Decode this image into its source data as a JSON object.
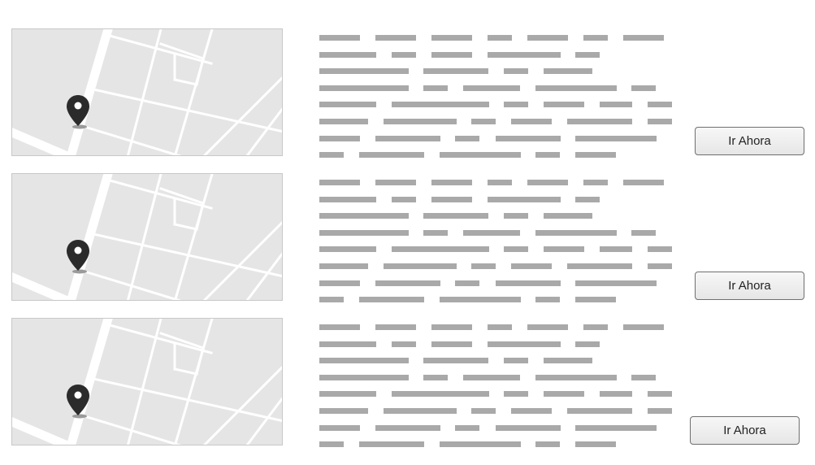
{
  "results": [
    {
      "button_label": "Ir Ahora",
      "map_icon": "map-pin-icon"
    },
    {
      "button_label": "Ir Ahora",
      "map_icon": "map-pin-icon"
    },
    {
      "button_label": "Ir Ahora",
      "map_icon": "map-pin-icon"
    }
  ],
  "colors": {
    "map_background": "#e5e5e5",
    "street": "#ffffff",
    "pin": "#2b2b2b",
    "placeholder_text": "#a9a9a9",
    "button_border": "#6f6f6f"
  }
}
